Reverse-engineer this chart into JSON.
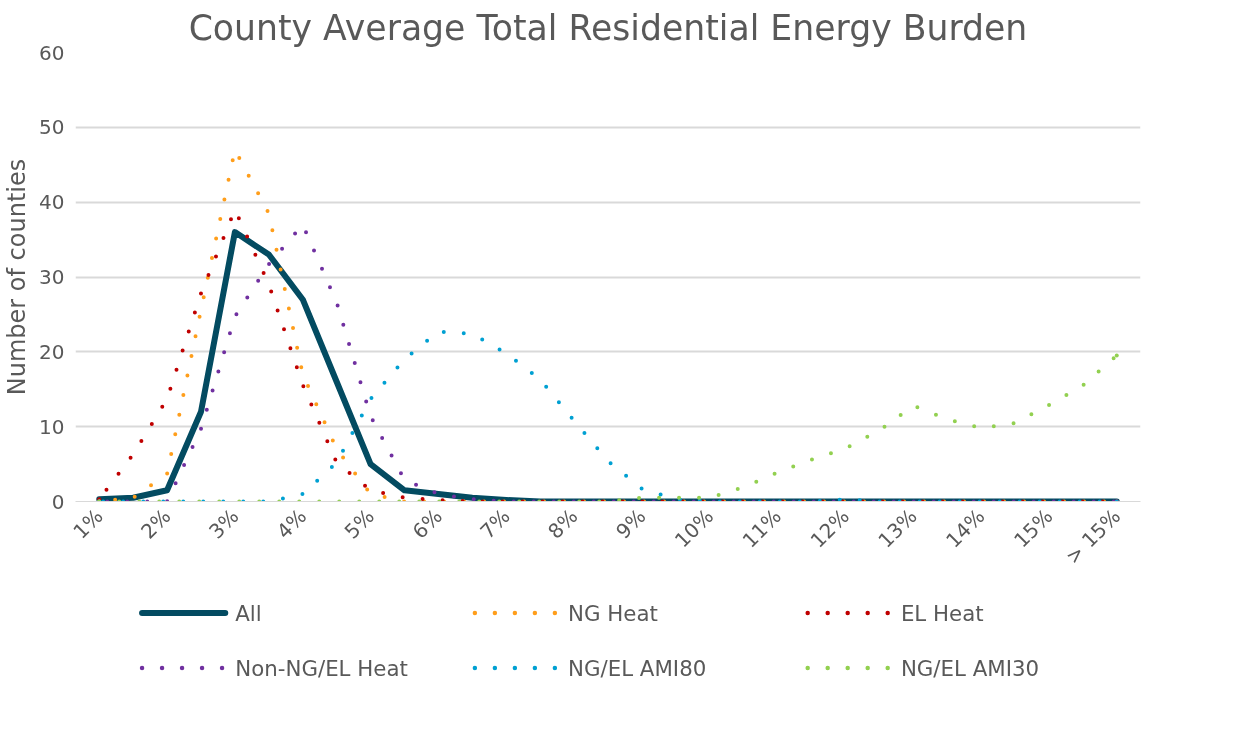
{
  "chart_data": {
    "type": "line",
    "title": "County Average Total Residential Energy Burden",
    "ylabel": "Number of counties",
    "categories": [
      "1%",
      null,
      "2%",
      null,
      "3%",
      null,
      "4%",
      null,
      "5%",
      null,
      "6%",
      null,
      "7%",
      null,
      "8%",
      null,
      "9%",
      null,
      "10%",
      null,
      "11%",
      null,
      "12%",
      null,
      "13%",
      null,
      "14%",
      null,
      "15%",
      null,
      "> 15%"
    ],
    "ylim": [
      0,
      60
    ],
    "yticks": [
      0,
      10,
      20,
      30,
      40,
      50,
      60
    ],
    "grid": "y",
    "legend": "bottom",
    "marker": "none",
    "series": [
      {
        "name": "All",
        "color": "#034b61",
        "line_style": "solid",
        "values": [
          0.3,
          0.5,
          1.5,
          12,
          36,
          33,
          27,
          16,
          5,
          1.5,
          1,
          0.5,
          0.2,
          0,
          0,
          0,
          0,
          0,
          0,
          0,
          0,
          0,
          0,
          0,
          0,
          0,
          0,
          0,
          0,
          0,
          0
        ]
      },
      {
        "name": "NG Heat",
        "color": "#ff9e1b",
        "line_style": "dotted",
        "values": [
          0,
          0.5,
          3.7,
          25.6,
          47,
          38.5,
          17,
          7,
          1,
          0,
          0,
          0,
          0,
          0,
          0,
          0,
          0,
          0,
          0,
          0,
          0,
          0,
          0,
          0,
          0,
          0,
          0,
          0,
          0,
          0,
          0
        ]
      },
      {
        "name": "EL Heat",
        "color": "#c00000",
        "line_style": "dotted",
        "values": [
          0.3,
          6.3,
          13.7,
          27.8,
          39,
          29,
          15.6,
          5.2,
          1.5,
          0.5,
          0.2,
          0,
          0,
          0,
          0,
          0,
          0,
          0,
          0,
          0,
          0,
          0,
          0,
          0,
          0,
          0,
          0,
          0,
          0,
          0,
          0
        ]
      },
      {
        "name": "Non-NG/EL Heat",
        "color": "#7030a0",
        "line_style": "dotted",
        "values": [
          0,
          0,
          0,
          9.7,
          24.7,
          31.7,
          37,
          26.6,
          11.4,
          2.9,
          1,
          0.3,
          0,
          0,
          0,
          0,
          0,
          0,
          0,
          0,
          0,
          0,
          0,
          0,
          0,
          0,
          0,
          0,
          0,
          0,
          0
        ]
      },
      {
        "name": "NG/EL AMI80",
        "color": "#00a0d2",
        "line_style": "dotted",
        "values": [
          0,
          0,
          0,
          0,
          0,
          0,
          1,
          5.2,
          13.7,
          19,
          22.7,
          22.4,
          19.8,
          16.3,
          10.8,
          5.4,
          1.7,
          0.3,
          0,
          0,
          0,
          0,
          0.3,
          0,
          0,
          0,
          0,
          0,
          0,
          0,
          0
        ]
      },
      {
        "name": "NG/EL AMI30",
        "color": "#92d050",
        "line_style": "dotted",
        "values": [
          0,
          0,
          0,
          0,
          0,
          0,
          0,
          0,
          0,
          0,
          0,
          0,
          0,
          0,
          0,
          0,
          0.5,
          0.5,
          0.5,
          1.9,
          3.9,
          5.6,
          7.1,
          9.5,
          12.8,
          11,
          9.8,
          10.5,
          12.9,
          15.5,
          19.5
        ]
      }
    ]
  }
}
